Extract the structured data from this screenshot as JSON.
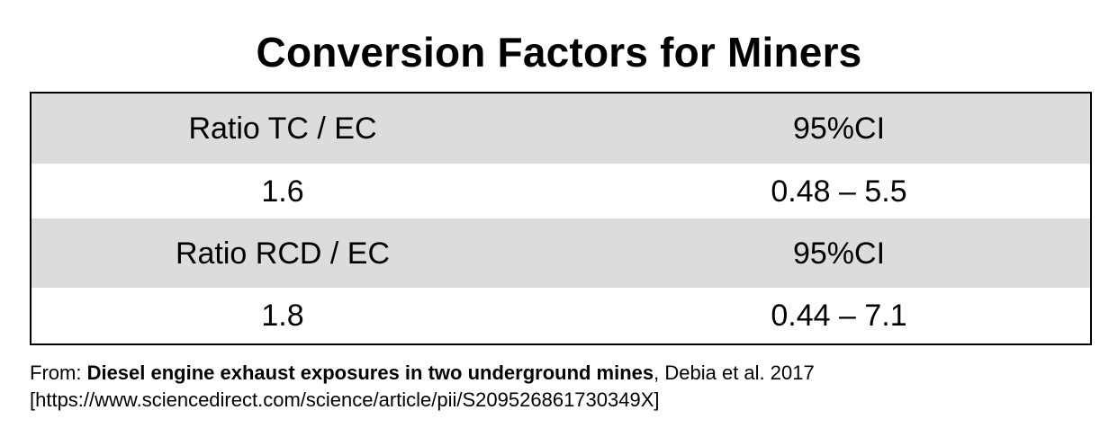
{
  "title": "Conversion Factors for Miners",
  "table": {
    "rows": [
      {
        "left": "Ratio TC / EC",
        "right": "95%CI",
        "shaded": true
      },
      {
        "left": "1.6",
        "right": "0.48 – 5.5",
        "shaded": false
      },
      {
        "left": "Ratio RCD / EC",
        "right": "95%CI",
        "shaded": true
      },
      {
        "left": "1.8",
        "right": "0.44 – 7.1",
        "shaded": false
      }
    ],
    "shade_color": "#dcdcdc",
    "border_color": "#000000"
  },
  "source": {
    "prefix": "From: ",
    "paper_title": "Diesel engine exhaust exposures in two underground mines",
    "citation": ", Debia et al. 2017",
    "url_line": "[https://www.sciencedirect.com/science/article/pii/S209526861730349X]"
  }
}
